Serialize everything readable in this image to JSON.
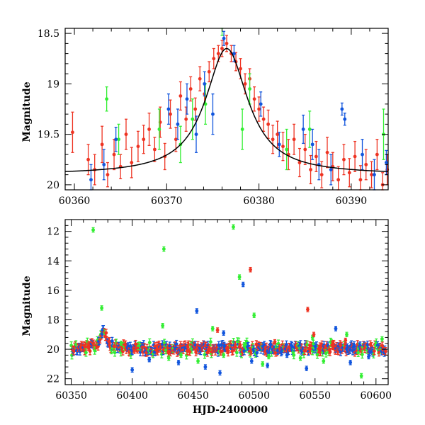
{
  "colors": {
    "green": "#33ee33",
    "blue": "#1155dd",
    "red": "#ee3322",
    "model": "#000000"
  },
  "chart_data": [
    {
      "type": "scatter",
      "panel": "top",
      "xlabel": "",
      "ylabel": "Magnitude",
      "xlim": [
        60359,
        60394
      ],
      "ylim": [
        20.05,
        18.45
      ],
      "y_inverted": true,
      "x_ticks": [
        "60360",
        "60370",
        "60380",
        "60390"
      ],
      "y_ticks": [
        "18.5",
        "19",
        "19.5",
        "20"
      ],
      "model_curve": {
        "type": "lorentzian",
        "x0": 60376.5,
        "peak_mag": 18.65,
        "base_mag": 19.9,
        "width": 2.8
      },
      "series": [
        {
          "color": "red",
          "points": [
            [
              60359.8,
              19.48,
              0.2
            ],
            [
              60361.5,
              19.75,
              0.15
            ],
            [
              60362.2,
              19.85,
              0.15
            ],
            [
              60363.0,
              19.6,
              0.18
            ],
            [
              60363.6,
              19.9,
              0.12
            ],
            [
              60364.3,
              19.7,
              0.15
            ],
            [
              60365.0,
              19.82,
              0.12
            ],
            [
              60365.6,
              19.5,
              0.15
            ],
            [
              60366.2,
              19.78,
              0.15
            ],
            [
              60366.9,
              19.62,
              0.15
            ],
            [
              60367.5,
              19.55,
              0.14
            ],
            [
              60368.1,
              19.45,
              0.16
            ],
            [
              60368.7,
              19.65,
              0.12
            ],
            [
              60369.3,
              19.38,
              0.15
            ],
            [
              60369.8,
              19.72,
              0.13
            ],
            [
              60370.4,
              19.3,
              0.14
            ],
            [
              60371.0,
              19.55,
              0.12
            ],
            [
              60371.5,
              19.12,
              0.14
            ],
            [
              60372.1,
              19.35,
              0.12
            ],
            [
              60372.6,
              19.05,
              0.12
            ],
            [
              60373.1,
              19.25,
              0.11
            ],
            [
              60373.6,
              18.95,
              0.12
            ],
            [
              60374.1,
              19.1,
              0.1
            ],
            [
              60374.6,
              18.88,
              0.1
            ],
            [
              60375.1,
              18.75,
              0.1
            ],
            [
              60375.6,
              18.7,
              0.08
            ],
            [
              60376.0,
              18.65,
              0.08
            ],
            [
              60376.5,
              18.6,
              0.08
            ],
            [
              60377.0,
              18.7,
              0.08
            ],
            [
              60377.5,
              18.78,
              0.09
            ],
            [
              60378.0,
              18.85,
              0.1
            ],
            [
              60378.5,
              19.0,
              0.1
            ],
            [
              60379.0,
              18.95,
              0.1
            ],
            [
              60379.5,
              19.15,
              0.12
            ],
            [
              60380.0,
              19.25,
              0.12
            ],
            [
              60380.5,
              19.35,
              0.12
            ],
            [
              60381.0,
              19.4,
              0.14
            ],
            [
              60381.5,
              19.55,
              0.14
            ],
            [
              60382.0,
              19.5,
              0.13
            ],
            [
              60382.6,
              19.62,
              0.14
            ],
            [
              60383.2,
              19.7,
              0.15
            ],
            [
              60383.8,
              19.55,
              0.15
            ],
            [
              60384.4,
              19.78,
              0.14
            ],
            [
              60385.0,
              19.65,
              0.15
            ],
            [
              60385.6,
              19.85,
              0.14
            ],
            [
              60386.2,
              19.72,
              0.15
            ],
            [
              60386.8,
              19.9,
              0.13
            ],
            [
              60387.4,
              19.68,
              0.15
            ],
            [
              60388.0,
              19.82,
              0.14
            ],
            [
              60388.6,
              19.95,
              0.13
            ],
            [
              60389.2,
              19.75,
              0.15
            ],
            [
              60389.8,
              19.88,
              0.14
            ],
            [
              60390.4,
              19.72,
              0.15
            ],
            [
              60391.0,
              19.95,
              0.14
            ],
            [
              60391.6,
              19.8,
              0.15
            ],
            [
              60392.2,
              19.9,
              0.13
            ],
            [
              60392.8,
              19.7,
              0.15
            ],
            [
              60393.4,
              20.0,
              0.12
            ],
            [
              60393.9,
              19.85,
              0.15
            ]
          ]
        },
        {
          "color": "green",
          "points": [
            [
              60363.5,
              19.15,
              0.12
            ],
            [
              60364.8,
              19.55,
              0.15
            ],
            [
              60369.2,
              19.45,
              0.2
            ],
            [
              60371.5,
              19.6,
              0.18
            ],
            [
              60372.8,
              19.35,
              0.2
            ],
            [
              60374.2,
              19.2,
              0.2
            ],
            [
              60376.0,
              18.42,
              0.1
            ],
            [
              60378.2,
              19.45,
              0.2
            ],
            [
              60379.0,
              19.05,
              0.15
            ],
            [
              60383.0,
              19.65,
              0.2
            ],
            [
              60385.5,
              19.45,
              0.18
            ],
            [
              60393.5,
              19.5,
              0.25
            ]
          ]
        },
        {
          "color": "blue",
          "points": [
            [
              60361.8,
              19.95,
              0.15
            ],
            [
              60363.2,
              19.8,
              0.15
            ],
            [
              60364.5,
              19.55,
              0.12
            ],
            [
              60370.2,
              19.25,
              0.15
            ],
            [
              60371.2,
              19.4,
              0.15
            ],
            [
              60372.2,
              19.15,
              0.15
            ],
            [
              60373.2,
              19.5,
              0.18
            ],
            [
              60374.1,
              19.0,
              0.12
            ],
            [
              60375.0,
              19.3,
              0.2
            ],
            [
              60376.2,
              18.55,
              0.07
            ],
            [
              60377.3,
              18.7,
              0.08
            ],
            [
              60380.2,
              19.2,
              0.12
            ],
            [
              60382.2,
              19.6,
              0.12
            ],
            [
              60384.8,
              19.45,
              0.14
            ],
            [
              60385.8,
              19.6,
              0.15
            ],
            [
              60386.5,
              19.8,
              0.15
            ],
            [
              60387.8,
              19.85,
              0.15
            ],
            [
              60389.0,
              19.25,
              0.06
            ],
            [
              60389.3,
              19.35,
              0.06
            ],
            [
              60391.2,
              19.7,
              0.15
            ],
            [
              60392.5,
              19.9,
              0.15
            ],
            [
              60393.8,
              19.78,
              0.12
            ]
          ]
        }
      ]
    },
    {
      "type": "scatter",
      "panel": "bottom",
      "xlabel": "HJD-2400000",
      "ylabel": "Magnitude",
      "xlim": [
        60345,
        60610
      ],
      "ylim": [
        22.4,
        11.2
      ],
      "y_inverted": true,
      "x_ticks": [
        "60350",
        "60400",
        "60450",
        "60500",
        "60550",
        "60600"
      ],
      "y_ticks": [
        "12",
        "14",
        "16",
        "18",
        "20",
        "22"
      ],
      "series": [
        {
          "color": "green",
          "points": [
            [
              60368,
              11.9
            ],
            [
              60375,
              17.2
            ],
            [
              60426,
              13.2
            ],
            [
              60483,
              11.7
            ],
            [
              60488,
              15.1
            ],
            [
              60391,
              19.6
            ],
            [
              60425,
              18.4
            ],
            [
              60430,
              20.6
            ],
            [
              60440,
              20.4
            ],
            [
              60454,
              20.8
            ],
            [
              60466,
              18.6
            ],
            [
              60475,
              20.4
            ],
            [
              60492,
              19.7
            ],
            [
              60500,
              17.7
            ],
            [
              60507,
              21.0
            ],
            [
              60512,
              20.5
            ],
            [
              60538,
              20.6
            ],
            [
              60548,
              19.2
            ],
            [
              60557,
              20.8
            ],
            [
              60576,
              19.0
            ],
            [
              60588,
              21.8
            ],
            [
              60605,
              19.3
            ]
          ]
        },
        {
          "color": "blue",
          "points": [
            [
              60491,
              15.6
            ],
            [
              60453,
              17.4
            ],
            [
              60475,
              18.9
            ],
            [
              60400,
              21.4
            ],
            [
              60414,
              20.7
            ],
            [
              60438,
              20.9
            ],
            [
              60460,
              21.2
            ],
            [
              60472,
              21.6
            ],
            [
              60498,
              20.8
            ],
            [
              60511,
              21.1
            ],
            [
              60527,
              20.4
            ],
            [
              60543,
              21.3
            ],
            [
              60567,
              18.6
            ],
            [
              60579,
              20.9
            ],
            [
              60594,
              20.5
            ]
          ]
        },
        {
          "color": "red",
          "points": [
            [
              60497,
              14.6
            ],
            [
              60544,
              17.3
            ],
            [
              60470,
              18.7
            ],
            [
              60517,
              19.5
            ],
            [
              60549,
              19.0
            ],
            [
              60575,
              19.4
            ]
          ]
        }
      ],
      "light_curve": {
        "baseline_mag": 19.95,
        "scatter_mag": 0.3,
        "x_range": [
          60350,
          60608
        ],
        "spacing_days": 0.55,
        "flare": {
          "x0": 60376.5,
          "peak_mag": 18.6,
          "width": 3.0
        }
      }
    }
  ]
}
